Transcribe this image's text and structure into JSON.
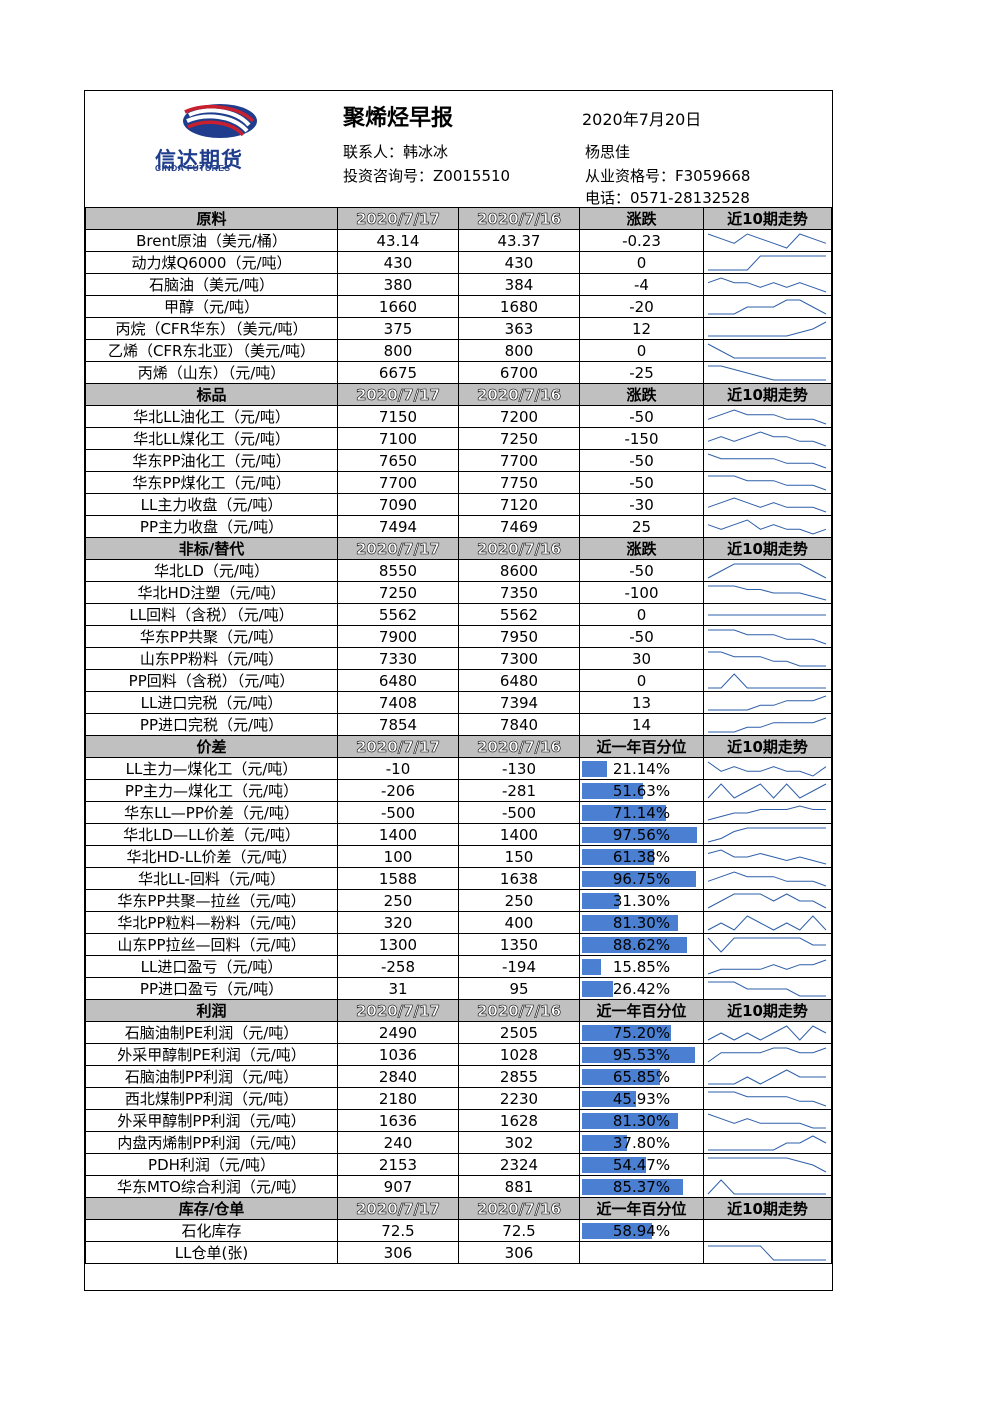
{
  "header": {
    "logo_cn": "信达期货",
    "logo_en": "CINDA FUTURES",
    "title": "聚烯烃早报",
    "date": "2020年7月20日",
    "contact": "联系人：韩冰冰",
    "invest_no": "投资咨询号：Z0015510",
    "author": "杨思佳",
    "qualification": "从业资格号：F3059668",
    "phone": "电话：0571-28132528"
  },
  "sections": [
    {
      "title": "原料",
      "col2": "2020/7/17",
      "col3": "2020/7/16",
      "col4": "涨跌",
      "col5": "近10期走势",
      "rows": [
        {
          "name": "Brent原油（美元/桶）",
          "v1": "43.14",
          "v2": "43.37",
          "v3": "-0.23",
          "trend": [
            5,
            4,
            3,
            5,
            4,
            3,
            2,
            5,
            4,
            3
          ]
        },
        {
          "name": "动力煤Q6000（元/吨）",
          "v1": "430",
          "v2": "430",
          "v3": "0",
          "trend": [
            1,
            1,
            1,
            1,
            3,
            3,
            3,
            3,
            3,
            3
          ]
        },
        {
          "name": "石脑油（美元/吨）",
          "v1": "380",
          "v2": "384",
          "v3": "-4",
          "trend": [
            4,
            5,
            4,
            4,
            3,
            4,
            3,
            4,
            3,
            2
          ]
        },
        {
          "name": "甲醇（元/吨）",
          "v1": "1660",
          "v2": "1680",
          "v3": "-20",
          "trend": [
            2,
            2,
            2,
            3,
            3,
            3,
            4,
            4,
            3,
            2
          ]
        },
        {
          "name": "丙烷（CFR华东）（美元/吨）",
          "v1": "375",
          "v2": "363",
          "v3": "12",
          "trend": [
            1,
            1,
            1,
            1,
            1,
            1,
            1,
            2,
            3,
            5
          ]
        },
        {
          "name": "乙烯（CFR东北亚）（美元/吨）",
          "v1": "800",
          "v2": "800",
          "v3": "0",
          "trend": [
            5,
            3,
            1,
            1,
            1,
            1,
            1,
            1,
            1,
            1
          ]
        },
        {
          "name": "丙烯（山东）（元/吨）",
          "v1": "6675",
          "v2": "6700",
          "v3": "-25",
          "trend": [
            5,
            5,
            4,
            3,
            2,
            1,
            1,
            1,
            1,
            1
          ]
        }
      ]
    },
    {
      "title": "标品",
      "col2": "2020/7/17",
      "col3": "2020/7/16",
      "col4": "涨跌",
      "col5": "近10期走势",
      "rows": [
        {
          "name": "华北LL油化工（元/吨）",
          "v1": "7150",
          "v2": "7200",
          "v3": "-50",
          "trend": [
            3,
            4,
            5,
            4,
            4,
            4,
            3,
            3,
            3,
            2
          ]
        },
        {
          "name": "华北LL煤化工（元/吨）",
          "v1": "7100",
          "v2": "7250",
          "v3": "-150",
          "trend": [
            3,
            4,
            3,
            4,
            5,
            4,
            4,
            3,
            3,
            2
          ]
        },
        {
          "name": "华东PP油化工（元/吨）",
          "v1": "7650",
          "v2": "7700",
          "v3": "-50",
          "trend": [
            5,
            4,
            4,
            4,
            4,
            4,
            3,
            3,
            3,
            2
          ]
        },
        {
          "name": "华东PP煤化工（元/吨）",
          "v1": "7700",
          "v2": "7750",
          "v3": "-50",
          "trend": [
            5,
            5,
            5,
            4,
            4,
            4,
            3,
            3,
            3,
            2
          ]
        },
        {
          "name": "LL主力收盘（元/吨）",
          "v1": "7090",
          "v2": "7120",
          "v3": "-30",
          "trend": [
            3,
            4,
            5,
            4,
            3,
            4,
            3,
            3,
            3,
            2
          ]
        },
        {
          "name": "PP主力收盘（元/吨）",
          "v1": "7494",
          "v2": "7469",
          "v3": "25",
          "trend": [
            4,
            3,
            4,
            5,
            3,
            4,
            3,
            3,
            2,
            3
          ]
        }
      ]
    },
    {
      "title": "非标/替代",
      "col2": "2020/7/17",
      "col3": "2020/7/16",
      "col4": "涨跌",
      "col5": "近10期走势",
      "rows": [
        {
          "name": "华北LD（元/吨）",
          "v1": "8550",
          "v2": "8600",
          "v3": "-50",
          "trend": [
            3,
            4,
            5,
            5,
            5,
            5,
            5,
            5,
            4,
            3
          ]
        },
        {
          "name": "华北HD注塑（元/吨）",
          "v1": "7250",
          "v2": "7350",
          "v3": "-100",
          "trend": [
            5,
            5,
            5,
            4,
            4,
            3,
            3,
            3,
            2,
            1
          ]
        },
        {
          "name": "LL回料（含税）（元/吨）",
          "v1": "5562",
          "v2": "5562",
          "v3": "0",
          "trend": [
            3,
            3,
            3,
            3,
            3,
            3,
            3,
            3,
            3,
            3
          ]
        },
        {
          "name": "华东PP共聚（元/吨）",
          "v1": "7900",
          "v2": "7950",
          "v3": "-50",
          "trend": [
            5,
            5,
            5,
            4,
            4,
            4,
            3,
            3,
            3,
            2
          ]
        },
        {
          "name": "山东PP粉料（元/吨）",
          "v1": "7330",
          "v2": "7300",
          "v3": "30",
          "trend": [
            5,
            5,
            4,
            4,
            4,
            3,
            3,
            2,
            2,
            2
          ]
        },
        {
          "name": "PP回料（含税）（元/吨）",
          "v1": "6480",
          "v2": "6480",
          "v3": "0",
          "trend": [
            1,
            1,
            4,
            1,
            1,
            1,
            1,
            1,
            1,
            1
          ]
        },
        {
          "name": "LL进口完税（元/吨）",
          "v1": "7408",
          "v2": "7394",
          "v3": "13",
          "trend": [
            1,
            1,
            1,
            1,
            2,
            2,
            3,
            3,
            3,
            4
          ]
        },
        {
          "name": "PP进口完税（元/吨）",
          "v1": "7854",
          "v2": "7840",
          "v3": "14",
          "trend": [
            1,
            1,
            1,
            2,
            2,
            3,
            3,
            3,
            3,
            4
          ]
        }
      ]
    },
    {
      "title": "价差",
      "col2": "2020/7/17",
      "col3": "2020/7/16",
      "col4": "近一年百分位",
      "col5": "近10期走势",
      "rows": [
        {
          "name": "LL主力—煤化工（元/吨）",
          "v1": "-10",
          "v2": "-130",
          "pct": "21.14%",
          "frac": 0.2114,
          "trend": [
            5,
            3,
            4,
            3,
            3,
            4,
            3,
            3,
            2,
            4
          ]
        },
        {
          "name": "PP主力—煤化工（元/吨）",
          "v1": "-206",
          "v2": "-281",
          "pct": "51.63%",
          "frac": 0.5163,
          "trend": [
            3,
            5,
            3,
            4,
            5,
            3,
            5,
            3,
            4,
            5
          ]
        },
        {
          "name": "华东LL—PP价差（元/吨）",
          "v1": "-500",
          "v2": "-500",
          "pct": "71.14%",
          "frac": 0.7114,
          "trend": [
            1,
            2,
            3,
            3,
            4,
            4,
            4,
            5,
            4,
            4
          ]
        },
        {
          "name": "华北LD—LL价差（元/吨）",
          "v1": "1400",
          "v2": "1400",
          "pct": "97.56%",
          "frac": 0.9756,
          "trend": [
            1,
            2,
            4,
            5,
            5,
            5,
            5,
            5,
            5,
            5
          ]
        },
        {
          "name": "华北HD-LL价差（元/吨）",
          "v1": "100",
          "v2": "150",
          "pct": "61.38%",
          "frac": 0.6138,
          "trend": [
            4,
            5,
            3,
            3,
            4,
            3,
            2,
            3,
            2,
            1
          ]
        },
        {
          "name": "华北LL-回料（元/吨）",
          "v1": "1588",
          "v2": "1638",
          "pct": "96.75%",
          "frac": 0.9675,
          "trend": [
            3,
            4,
            5,
            4,
            4,
            4,
            3,
            3,
            3,
            2
          ]
        },
        {
          "name": "华东PP共聚—拉丝（元/吨）",
          "v1": "250",
          "v2": "250",
          "pct": "31.30%",
          "frac": 0.313,
          "trend": [
            1,
            3,
            5,
            5,
            5,
            3,
            5,
            3,
            3,
            1
          ]
        },
        {
          "name": "华北PP粒料—粉料（元/吨）",
          "v1": "320",
          "v2": "400",
          "pct": "81.30%",
          "frac": 0.813,
          "trend": [
            3,
            4,
            3,
            5,
            4,
            3,
            4,
            3,
            5,
            3
          ]
        },
        {
          "name": "山东PP拉丝—回料（元/吨）",
          "v1": "1300",
          "v2": "1350",
          "pct": "88.62%",
          "frac": 0.8862,
          "trend": [
            4,
            2,
            4,
            4,
            4,
            4,
            4,
            4,
            3,
            3
          ]
        },
        {
          "name": "LL进口盈亏（元/吨）",
          "v1": "-258",
          "v2": "-194",
          "pct": "15.85%",
          "frac": 0.1585,
          "trend": [
            2,
            3,
            3,
            3,
            3,
            4,
            3,
            4,
            4,
            5
          ]
        },
        {
          "name": "PP进口盈亏（元/吨）",
          "v1": "31",
          "v2": "95",
          "pct": "26.42%",
          "frac": 0.2642,
          "trend": [
            4,
            4,
            4,
            3,
            3,
            3,
            3,
            2,
            2,
            2
          ]
        }
      ]
    },
    {
      "title": "利润",
      "col2": "2020/7/17",
      "col3": "2020/7/16",
      "col4": "近一年百分位",
      "col5": "近10期走势",
      "rows": [
        {
          "name": "石脑油制PE利润（元/吨）",
          "v1": "2490",
          "v2": "2505",
          "pct": "75.20%",
          "frac": 0.752,
          "trend": [
            3,
            4,
            3,
            4,
            3,
            4,
            5,
            3,
            5,
            4
          ]
        },
        {
          "name": "外采甲醇制PE利润（元/吨）",
          "v1": "1036",
          "v2": "1028",
          "pct": "95.53%",
          "frac": 0.9553,
          "trend": [
            2,
            4,
            4,
            4,
            4,
            5,
            5,
            4,
            4,
            5
          ]
        },
        {
          "name": "石脑油制PP利润（元/吨）",
          "v1": "2840",
          "v2": "2855",
          "pct": "65.85%",
          "frac": 0.6585,
          "trend": [
            3,
            3,
            3,
            4,
            3,
            4,
            5,
            4,
            4,
            4
          ]
        },
        {
          "name": "西北煤制PP利润（元/吨）",
          "v1": "2180",
          "v2": "2230",
          "pct": "45.93%",
          "frac": 0.4593,
          "trend": [
            5,
            5,
            5,
            4,
            4,
            4,
            4,
            3,
            3,
            2
          ]
        },
        {
          "name": "外采甲醇制PP利润（元/吨）",
          "v1": "1636",
          "v2": "1628",
          "pct": "81.30%",
          "frac": 0.813,
          "trend": [
            5,
            4,
            3,
            4,
            3,
            3,
            3,
            3,
            2,
            2
          ]
        },
        {
          "name": "内盘丙烯制PP利润（元/吨）",
          "v1": "240",
          "v2": "302",
          "pct": "37.80%",
          "frac": 0.378,
          "trend": [
            2,
            2,
            2,
            2,
            2,
            2,
            3,
            3,
            4,
            3
          ]
        },
        {
          "name": "PDH利润（元/吨）",
          "v1": "2153",
          "v2": "2324",
          "pct": "54.47%",
          "frac": 0.5447,
          "trend": [
            5,
            5,
            5,
            5,
            5,
            5,
            5,
            4,
            3,
            1
          ]
        },
        {
          "name": "华东MTO综合利润（元/吨）",
          "v1": "907",
          "v2": "881",
          "pct": "85.37%",
          "frac": 0.8537,
          "trend": [
            3,
            4,
            3,
            3,
            3,
            3,
            3,
            3,
            3,
            3
          ]
        }
      ]
    },
    {
      "title": "库存/仓单",
      "col2": "2020/7/17",
      "col3": "2020/7/16",
      "col4": "近一年百分位",
      "col5": "近10期走势",
      "rows": [
        {
          "name": "石化库存",
          "v1": "72.5",
          "v2": "72.5",
          "pct": "58.94%",
          "frac": 0.5894,
          "trend": null
        },
        {
          "name": "LL仓单(张)",
          "v1": "306",
          "v2": "306",
          "pct": "",
          "frac": 0,
          "trend": [
            5,
            5,
            5,
            5,
            5,
            1,
            1,
            1,
            1,
            1
          ]
        }
      ]
    }
  ],
  "colors": {
    "header_fill": "#c0c0c0",
    "bar": "#4a7fd1",
    "spark": "#2e5fa8",
    "logo": "#1f3d8c",
    "logo_red": "#c8202e"
  }
}
